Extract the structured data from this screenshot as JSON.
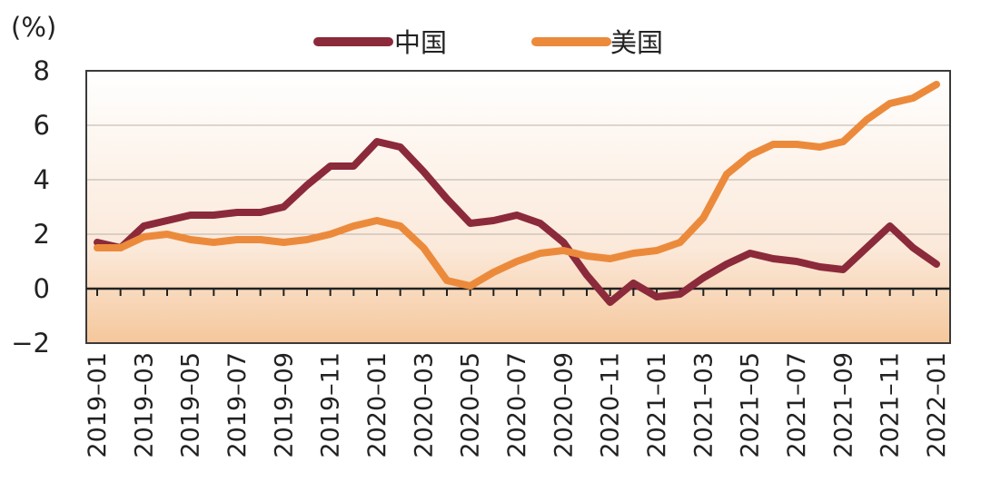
{
  "chart_data": {
    "type": "line",
    "unit_label": "(%)",
    "ylim": [
      -2,
      8
    ],
    "yticks": [
      "8",
      "6",
      "4",
      "2",
      "0",
      "−2"
    ],
    "ytick_values": [
      8,
      6,
      4,
      2,
      0,
      -2
    ],
    "grid": true,
    "legend_position": "top-center",
    "x": [
      "2019–01",
      "2019–02",
      "2019–03",
      "2019–04",
      "2019–05",
      "2019–06",
      "2019–07",
      "2019–08",
      "2019–09",
      "2019–10",
      "2019–11",
      "2019–12",
      "2020–01",
      "2020–02",
      "2020–03",
      "2020–04",
      "2020–05",
      "2020–06",
      "2020–07",
      "2020–08",
      "2020–09",
      "2020–10",
      "2020–11",
      "2020–12",
      "2021–01",
      "2021–02",
      "2021–03",
      "2021–04",
      "2021–05",
      "2021–06",
      "2021–07",
      "2021–08",
      "2021–09",
      "2021–10",
      "2021–11",
      "2021–12",
      "2022–01"
    ],
    "xtick_labels": [
      "2019–01",
      "2019–03",
      "2019–05",
      "2019–07",
      "2019–09",
      "2019–11",
      "2020–01",
      "2020–03",
      "2020–05",
      "2020–07",
      "2020–09",
      "2020–11",
      "2021–01",
      "2021–03",
      "2021–05",
      "2021–07",
      "2021–09",
      "2021–11",
      "2022–01"
    ],
    "series": [
      {
        "name": "中国",
        "color": "#8b2a3a",
        "values": [
          1.7,
          1.5,
          2.3,
          2.5,
          2.7,
          2.7,
          2.8,
          2.8,
          3.0,
          3.8,
          4.5,
          4.5,
          5.4,
          5.2,
          4.3,
          3.3,
          2.4,
          2.5,
          2.7,
          2.4,
          1.7,
          0.5,
          -0.5,
          0.2,
          -0.3,
          -0.2,
          0.4,
          0.9,
          1.3,
          1.1,
          1.0,
          0.8,
          0.7,
          1.5,
          2.3,
          1.5,
          0.9
        ]
      },
      {
        "name": "美国",
        "color": "#ec8a3c",
        "values": [
          1.5,
          1.5,
          1.9,
          2.0,
          1.8,
          1.7,
          1.8,
          1.8,
          1.7,
          1.8,
          2.0,
          2.3,
          2.5,
          2.3,
          1.5,
          0.3,
          0.1,
          0.6,
          1.0,
          1.3,
          1.4,
          1.2,
          1.1,
          1.3,
          1.4,
          1.7,
          2.6,
          4.2,
          4.9,
          5.3,
          5.3,
          5.2,
          5.4,
          6.2,
          6.8,
          7.0,
          7.5
        ]
      }
    ]
  }
}
